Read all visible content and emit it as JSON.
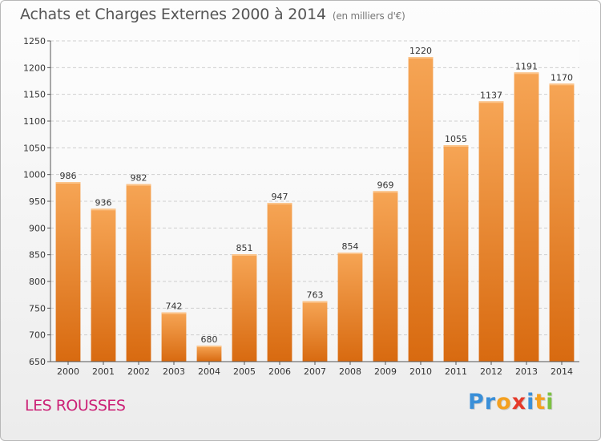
{
  "chart_data": {
    "type": "bar",
    "title": "Achats et Charges Externes 2000 à 2014",
    "subtitle": "(en milliers d'€)",
    "categories": [
      "2000",
      "2001",
      "2002",
      "2003",
      "2004",
      "2005",
      "2006",
      "2007",
      "2008",
      "2009",
      "2010",
      "2011",
      "2012",
      "2013",
      "2014"
    ],
    "values": [
      986,
      936,
      982,
      742,
      680,
      851,
      947,
      763,
      854,
      969,
      1220,
      1055,
      1137,
      1191,
      1170
    ],
    "xlabel": "",
    "ylabel": "",
    "ylim": [
      650,
      1250
    ],
    "yticks": [
      650,
      700,
      750,
      800,
      850,
      900,
      950,
      1000,
      1050,
      1100,
      1150,
      1200,
      1250
    ],
    "grid": true,
    "bar_color": "#f08a2e",
    "bar_color_dark": "#d86a10"
  },
  "location": "LES ROUSSES",
  "logo": {
    "letters": [
      {
        "ch": "P",
        "color": "#3a8fd8"
      },
      {
        "ch": "r",
        "color": "#3a8fd8"
      },
      {
        "ch": "o",
        "color": "#f4a020"
      },
      {
        "ch": "x",
        "color": "#e53a2a"
      },
      {
        "ch": "i",
        "color": "#3a8fd8"
      },
      {
        "ch": "t",
        "color": "#f4a020"
      },
      {
        "ch": "i",
        "color": "#7cc142"
      }
    ]
  }
}
